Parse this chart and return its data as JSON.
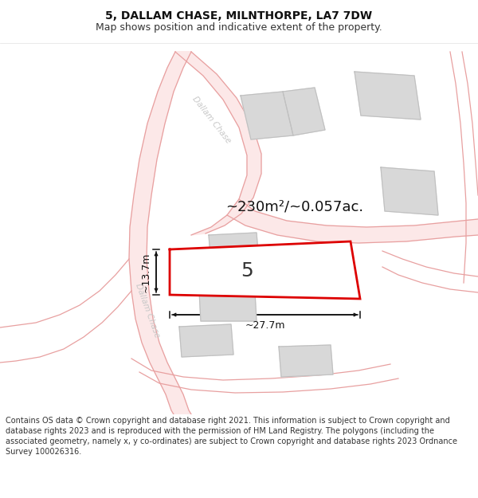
{
  "title": "5, DALLAM CHASE, MILNTHORPE, LA7 7DW",
  "subtitle": "Map shows position and indicative extent of the property.",
  "footnote": "Contains OS data © Crown copyright and database right 2021. This information is subject to Crown copyright and database rights 2023 and is reproduced with the permission of HM Land Registry. The polygons (including the associated geometry, namely x, y co-ordinates) are subject to Crown copyright and database rights 2023 Ordnance Survey 100026316.",
  "area_text": "~230m²/~0.057ac.",
  "width_text": "~27.7m",
  "height_text": "~13.7m",
  "plot_number": "5",
  "road_color": "#e8a0a0",
  "road_fill": "#ffffff",
  "building_color": "#d8d8d8",
  "building_edge": "#c0c0c0",
  "highlight_color": "#dd0000",
  "bg_color": "#ffffff",
  "title_fontsize": 10,
  "subtitle_fontsize": 9,
  "footnote_fontsize": 7,
  "plot_label_size": 18,
  "area_label_size": 13,
  "dim_label_size": 9,
  "road_label_size": 7.5,
  "road_label_color": "#c8c8c8"
}
